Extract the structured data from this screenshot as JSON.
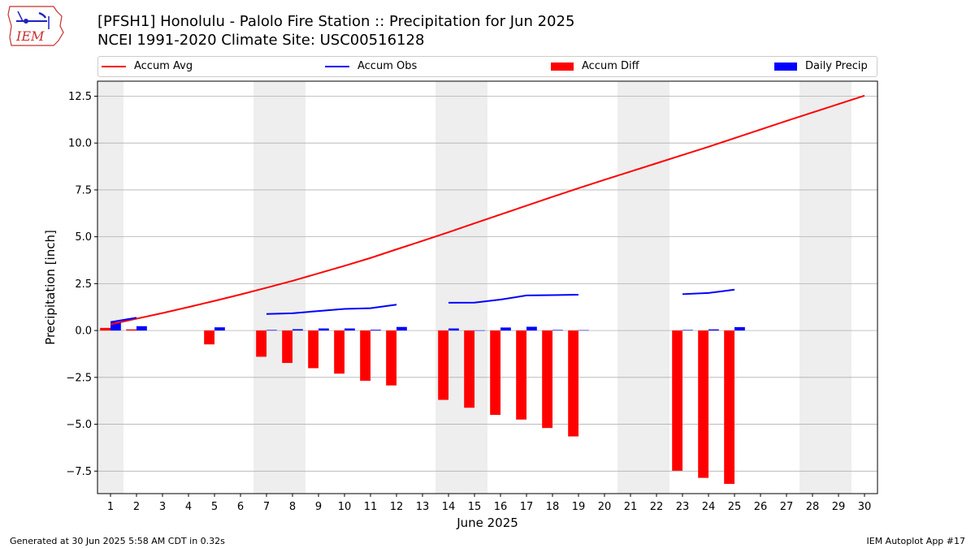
{
  "titles": {
    "line1": "[PFSH1] Honolulu - Palolo Fire Station :: Precipitation for Jun 2025",
    "line2": "NCEI 1991-2020 Climate Site: USC00516128"
  },
  "logo_text": "IEM",
  "footer": {
    "left": "Generated at 30 Jun 2025 5:58 AM CDT in 0.32s",
    "right": "IEM Autoplot App #17"
  },
  "colors": {
    "accum_avg": "#ff0000",
    "accum_obs": "#0000ff",
    "accum_diff": "#ff0000",
    "daily_precip": "#0000ff",
    "weekend_shade": "#eeeeee",
    "grid": "#b0b0b0"
  },
  "chart_data": {
    "type": "bar",
    "xlabel": "June 2025",
    "ylabel": "Precipitation [inch]",
    "ylim": [
      -8.7,
      13.3
    ],
    "xlim": [
      0.5,
      30.5
    ],
    "yticks": [
      -7.5,
      -5.0,
      -2.5,
      0.0,
      2.5,
      5.0,
      7.5,
      10.0,
      12.5
    ],
    "ytick_labels": [
      "−7.5",
      "−5.0",
      "−2.5",
      "0.0",
      "2.5",
      "5.0",
      "7.5",
      "10.0",
      "12.5"
    ],
    "grid": "horizontal",
    "legend_position": "top",
    "days": [
      1,
      2,
      3,
      4,
      5,
      6,
      7,
      8,
      9,
      10,
      11,
      12,
      13,
      14,
      15,
      16,
      17,
      18,
      19,
      20,
      21,
      22,
      23,
      24,
      25,
      26,
      27,
      28,
      29,
      30
    ],
    "shaded_days": [
      [
        1,
        1
      ],
      [
        7,
        8
      ],
      [
        14,
        15
      ],
      [
        21,
        22
      ],
      [
        28,
        29
      ]
    ],
    "legend": [
      {
        "label": "Accum Avg",
        "kind": "line",
        "color_key": "accum_avg"
      },
      {
        "label": "Accum Obs",
        "kind": "line",
        "color_key": "accum_obs"
      },
      {
        "label": "Accum Diff",
        "kind": "bar",
        "color_key": "accum_diff"
      },
      {
        "label": "Daily Precip",
        "kind": "bar",
        "color_key": "daily_precip"
      }
    ],
    "series": [
      {
        "name": "Accum Avg",
        "type": "line",
        "x": [
          1,
          2,
          3,
          4,
          5,
          6,
          7,
          8,
          9,
          10,
          11,
          12,
          13,
          14,
          15,
          16,
          17,
          18,
          19,
          20,
          21,
          22,
          23,
          24,
          25,
          26,
          27,
          28,
          29,
          30
        ],
        "values": [
          0.33,
          0.63,
          0.93,
          1.25,
          1.58,
          1.92,
          2.28,
          2.65,
          3.05,
          3.45,
          3.87,
          4.33,
          4.78,
          5.24,
          5.72,
          6.19,
          6.66,
          7.13,
          7.59,
          8.04,
          8.48,
          8.92,
          9.36,
          9.8,
          10.26,
          10.72,
          11.18,
          11.63,
          12.08,
          12.53
        ]
      },
      {
        "name": "Accum Obs",
        "type": "line",
        "segments": [
          {
            "x": [
              1,
              2
            ],
            "values": [
              0.45,
              0.68
            ]
          },
          {
            "x": [
              7,
              8,
              9,
              10,
              11,
              12
            ],
            "values": [
              0.88,
              0.92,
              1.04,
              1.15,
              1.19,
              1.38
            ]
          },
          {
            "x": [
              14,
              15,
              16,
              17,
              18,
              19
            ],
            "values": [
              1.48,
              1.49,
              1.65,
              1.87,
              1.89,
              1.91
            ]
          },
          {
            "x": [
              23,
              24,
              25
            ],
            "values": [
              1.94,
              2.0,
              2.18
            ]
          }
        ]
      },
      {
        "name": "Accum Diff",
        "type": "bar",
        "x": [
          1,
          2,
          5,
          7,
          8,
          9,
          10,
          11,
          12,
          14,
          15,
          16,
          17,
          18,
          19,
          23,
          24,
          25
        ],
        "values": [
          0.14,
          0.06,
          -0.74,
          -1.4,
          -1.73,
          -2.01,
          -2.3,
          -2.68,
          -2.93,
          -3.7,
          -4.12,
          -4.5,
          -4.75,
          -5.2,
          -5.65,
          -7.48,
          -7.86,
          -8.18
        ]
      },
      {
        "name": "Daily Precip",
        "type": "bar",
        "x": [
          1,
          2,
          5,
          7,
          8,
          9,
          10,
          11,
          12,
          14,
          15,
          16,
          17,
          18,
          19,
          23,
          24,
          25
        ],
        "values": [
          0.45,
          0.23,
          0.17,
          0.03,
          0.07,
          0.11,
          0.11,
          0.04,
          0.19,
          0.11,
          0.01,
          0.16,
          0.2,
          0.03,
          0.02,
          0.03,
          0.06,
          0.18
        ]
      }
    ]
  }
}
